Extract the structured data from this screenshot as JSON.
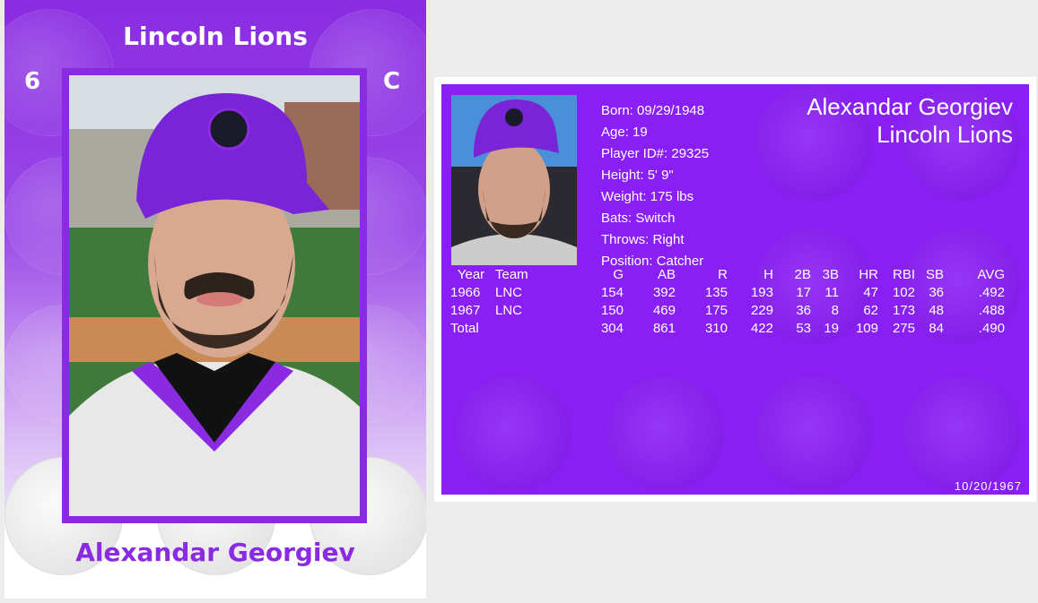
{
  "front": {
    "team": "Lincoln Lions",
    "number": "6",
    "position": "C",
    "player_name": "Alexandar Georgiev"
  },
  "back": {
    "player_name": "Alexandar Georgiev",
    "team": "Lincoln Lions",
    "bio": [
      "Born: 09/29/1948",
      "Age: 19",
      "Player ID#: 29325",
      "Height: 5' 9\"",
      "Weight: 175 lbs",
      "Bats: Switch",
      "Throws: Right",
      "Position: Catcher"
    ],
    "stats": {
      "headers": [
        "Year",
        "Team",
        "G",
        "AB",
        "R",
        "H",
        "2B",
        "3B",
        "HR",
        "RBI",
        "SB",
        "AVG"
      ],
      "rows": [
        [
          "1966",
          "LNC",
          "154",
          "392",
          "135",
          "193",
          "17",
          "11",
          "47",
          "102",
          "36",
          ".492"
        ],
        [
          "1967",
          "LNC",
          "150",
          "469",
          "175",
          "229",
          "36",
          "8",
          "62",
          "173",
          "48",
          ".488"
        ],
        [
          "Total",
          "",
          "304",
          "861",
          "310",
          "422",
          "53",
          "19",
          "109",
          "275",
          "84",
          ".490"
        ]
      ]
    },
    "date": "10/20/1967"
  },
  "colors": {
    "brand_purple": "#8a2be2",
    "back_purple": "#8a1ff5"
  }
}
